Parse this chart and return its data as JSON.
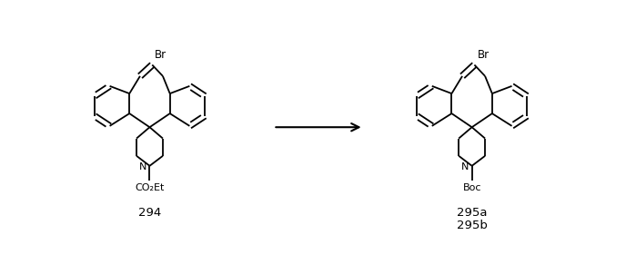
{
  "bg_color": "#ffffff",
  "label_294": "294",
  "label_295a": "295a",
  "label_295b": "295b",
  "label_Br_left": "Br",
  "label_Br_right": "Br",
  "label_CO2Et": "CO₂Et",
  "label_N_left": "N",
  "label_N_right": "N",
  "label_Boc": "Boc",
  "figsize": [
    6.99,
    3.02
  ],
  "dpi": 100
}
